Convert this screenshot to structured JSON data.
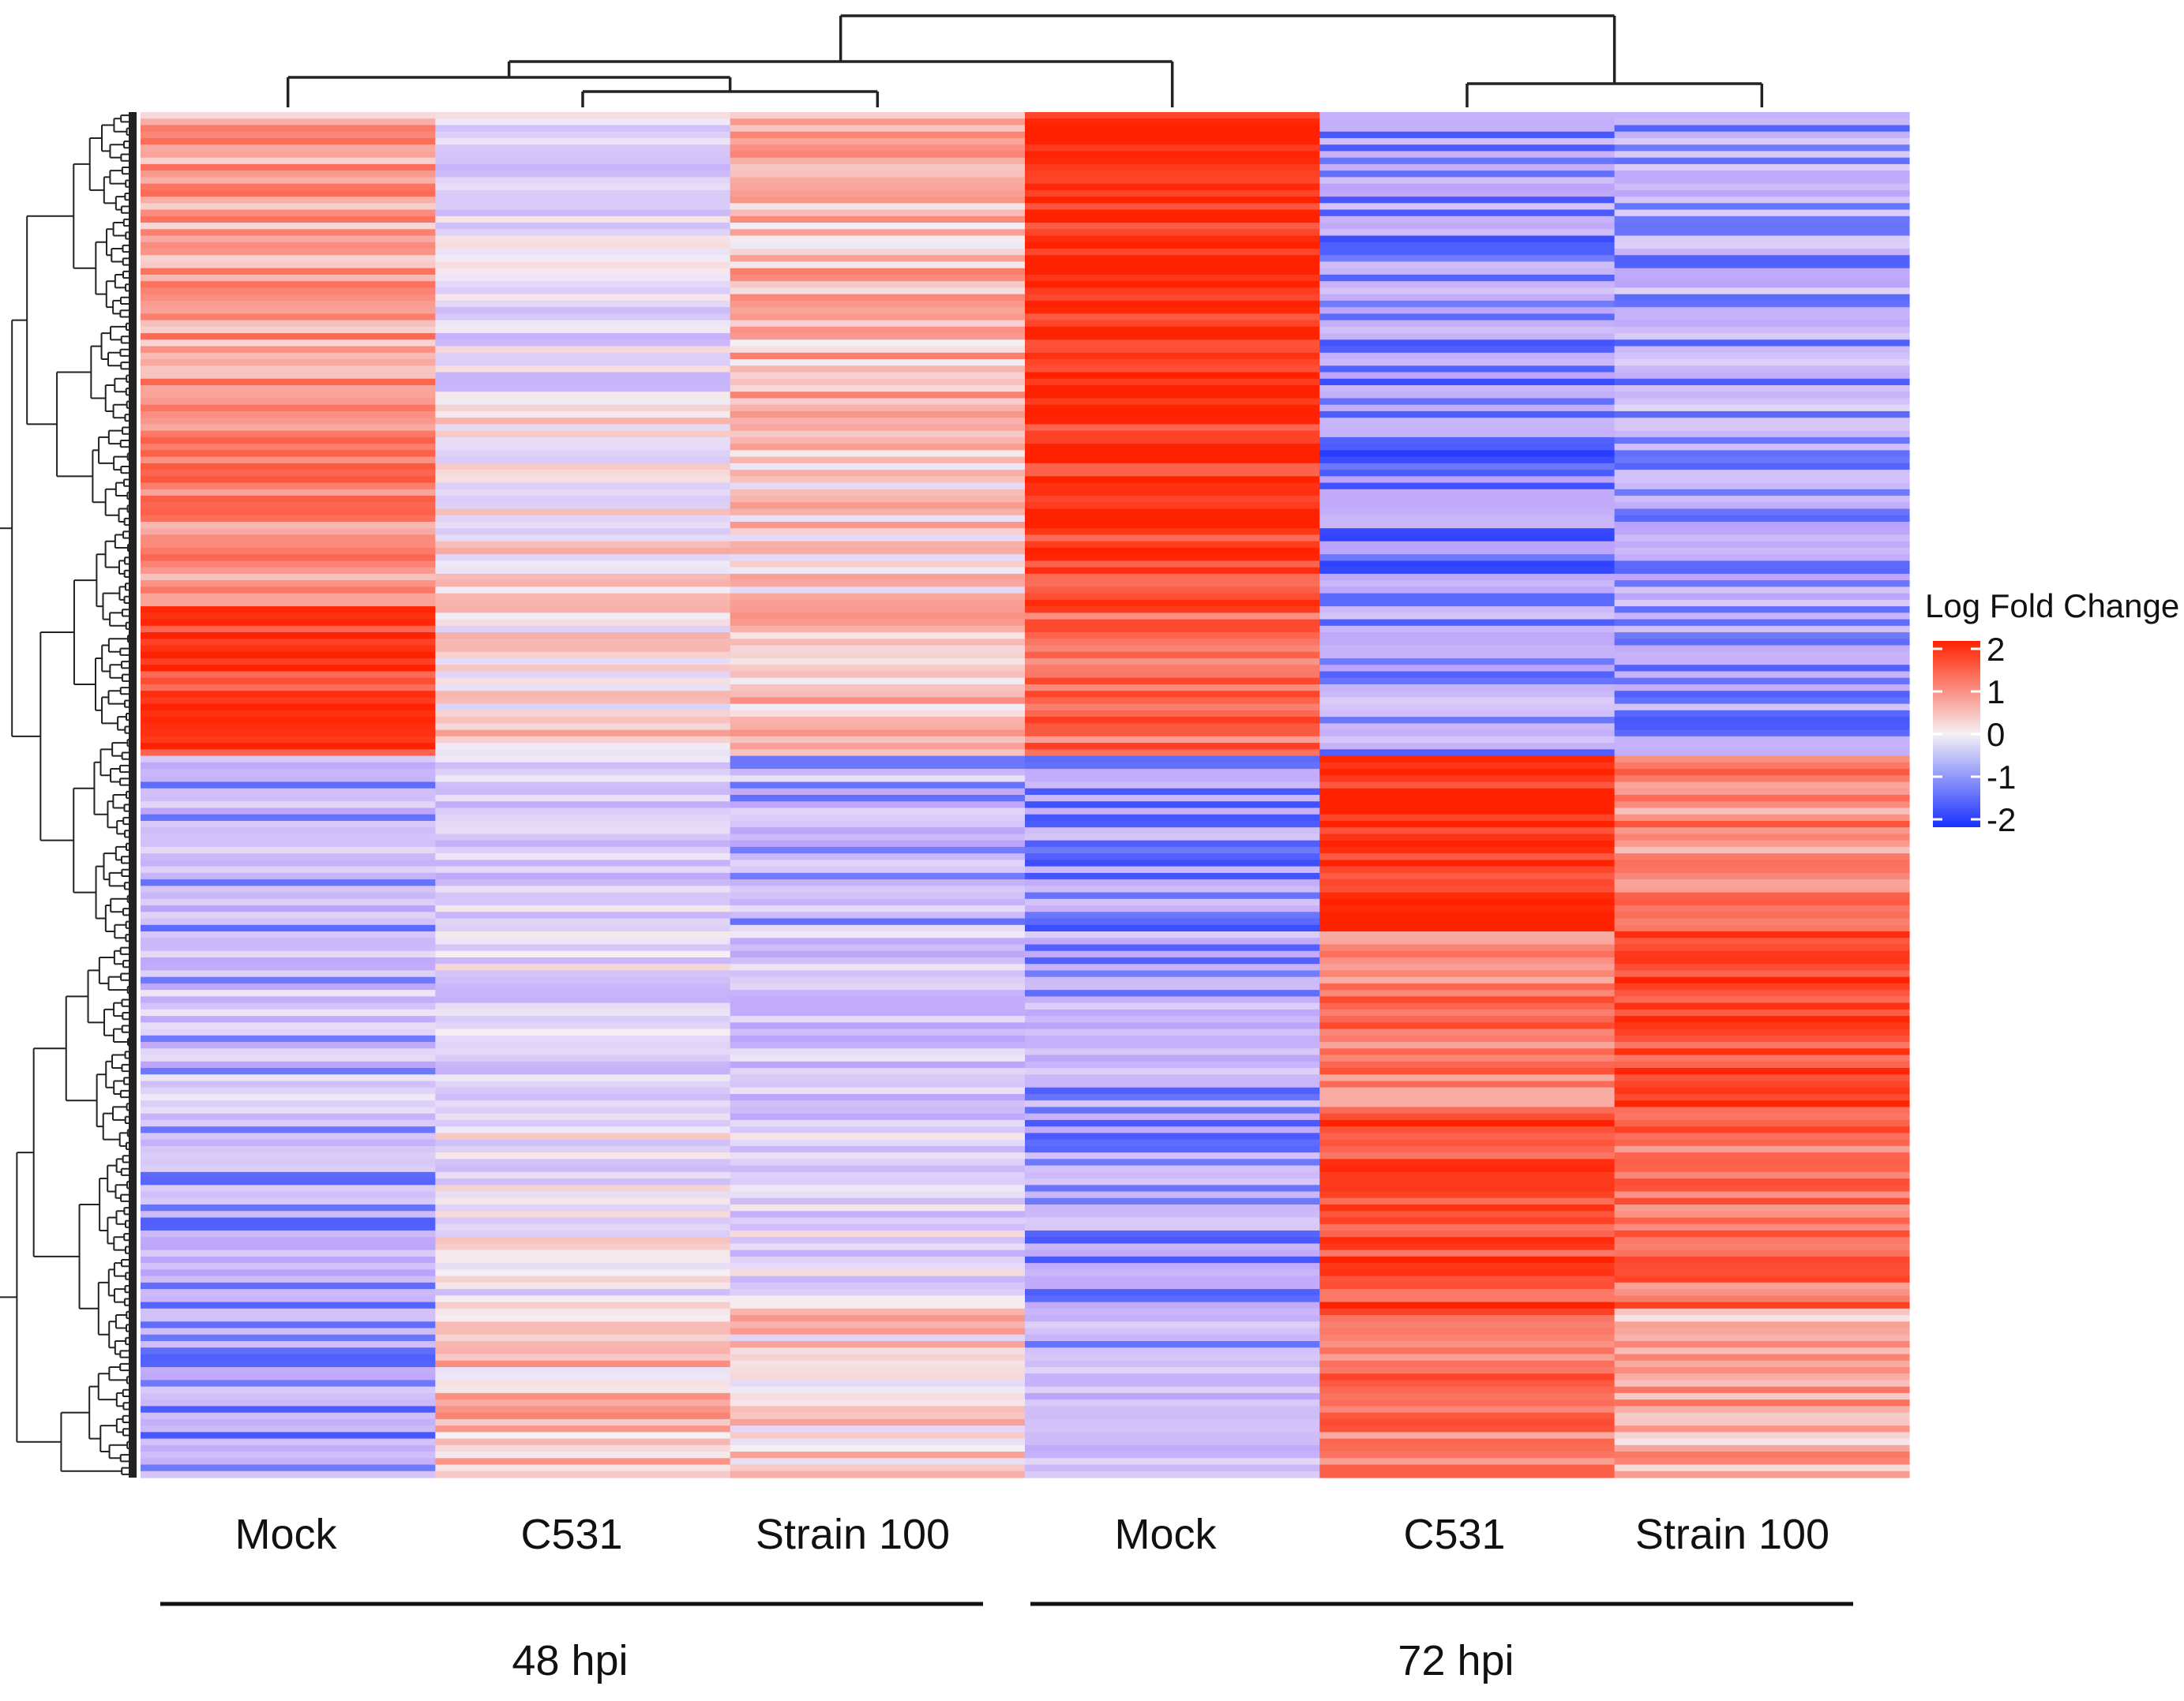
{
  "chart_data": {
    "type": "heatmap",
    "title": "",
    "columns": [
      {
        "label": "Mock",
        "group": "48 hpi"
      },
      {
        "label": "C531",
        "group": "48 hpi"
      },
      {
        "label": "Strain 100",
        "group": "48 hpi"
      },
      {
        "label": "Mock",
        "group": "72 hpi"
      },
      {
        "label": "C531",
        "group": "72 hpi"
      },
      {
        "label": "Strain 100",
        "group": "72 hpi"
      }
    ],
    "groups": [
      {
        "label": "48 hpi",
        "columns": [
          0,
          1,
          2
        ]
      },
      {
        "label": "72 hpi",
        "columns": [
          3,
          4,
          5
        ]
      }
    ],
    "column_dendrogram": "((48h-Mock,(48h-C531,48h-Strain100)),72h-Mock),(72h-C531,72h-Strain100)",
    "row_dendrogram": true,
    "legend": {
      "title": "Log Fold Change",
      "ticks": [
        "2",
        "1",
        "0",
        "-1",
        "-2"
      ],
      "range": [
        -2,
        2
      ],
      "colors": {
        "high": "#ff2200",
        "mid": "#f5f0f5",
        "low": "#1a30ff"
      },
      "placement": "right"
    },
    "row_blocks": [
      {
        "share": 0.21,
        "values": [
          0.7,
          -0.35,
          0.45,
          1.9,
          -1.1,
          -0.9
        ]
      },
      {
        "share": 0.15,
        "values": [
          0.9,
          0.05,
          0.25,
          1.7,
          -1.3,
          -0.85
        ]
      },
      {
        "share": 0.11,
        "values": [
          1.6,
          0.15,
          0.4,
          1.2,
          -0.95,
          -1.0
        ]
      },
      {
        "share": 0.13,
        "values": [
          -0.8,
          -0.45,
          -0.7,
          -1.1,
          1.85,
          0.9
        ]
      },
      {
        "share": 0.14,
        "values": [
          -0.6,
          -0.35,
          -0.55,
          -0.9,
          1.05,
          1.6
        ]
      },
      {
        "share": 0.14,
        "values": [
          -0.9,
          -0.2,
          -0.35,
          -1.0,
          1.55,
          1.15
        ]
      },
      {
        "share": 0.12,
        "values": [
          -1.0,
          0.4,
          0.2,
          -0.8,
          1.1,
          0.6
        ]
      }
    ]
  }
}
